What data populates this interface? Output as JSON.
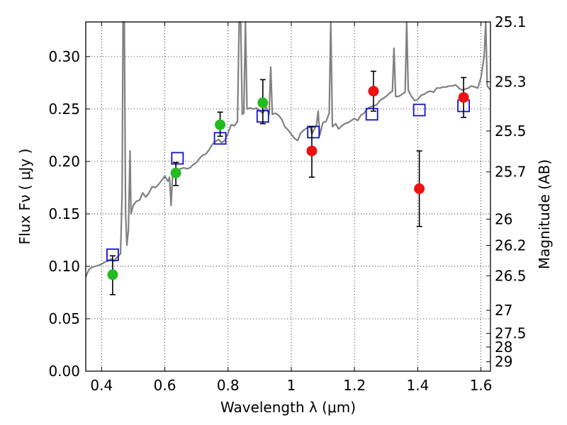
{
  "chart_data": {
    "type": "scatter",
    "xlabel": "Wavelength  λ (μm)",
    "ylabel": "Flux  Fν  ( μJy )",
    "ylabel_right": "Magnitude (AB)",
    "xlim": [
      0.35,
      1.63
    ],
    "ylim": [
      0.0,
      0.333
    ],
    "grid": true,
    "x_ticks": [
      0.4,
      0.6,
      0.8,
      1.0,
      1.2,
      1.4,
      1.6
    ],
    "x_tick_labels": [
      "0.4",
      "0.6",
      "0.8",
      "1",
      "1.2",
      "1.4",
      "1.6"
    ],
    "y_ticks": [
      0.0,
      0.05,
      0.1,
      0.15,
      0.2,
      0.25,
      0.3
    ],
    "y_tick_labels": [
      "0.00",
      "0.05",
      "0.10",
      "0.15",
      "0.20",
      "0.25",
      "0.30"
    ],
    "right_ticks": [
      {
        "label": "25.1",
        "flux": 0.333
      },
      {
        "label": "25.3",
        "flux": 0.276
      },
      {
        "label": "25.5",
        "flux": 0.229
      },
      {
        "label": "25.7",
        "flux": 0.19
      },
      {
        "label": "26",
        "flux": 0.145
      },
      {
        "label": "26.2",
        "flux": 0.12
      },
      {
        "label": "26.5",
        "flux": 0.091
      },
      {
        "label": "27",
        "flux": 0.058
      },
      {
        "label": "27.5",
        "flux": 0.036
      },
      {
        "label": "28",
        "flux": 0.023
      },
      {
        "label": "29",
        "flux": 0.009
      }
    ],
    "colors": {
      "green": "#22bb22",
      "red": "#ee1111",
      "blue": "#1111cc",
      "spectrum": "#808080",
      "errorbar": "#000000"
    },
    "series": [
      {
        "marker": "circle",
        "color": "#22bb22",
        "points": [
          {
            "x": 0.435,
            "y": 0.092,
            "yerr_low": 0.019,
            "yerr_high": 0.018
          },
          {
            "x": 0.635,
            "y": 0.189,
            "yerr_low": 0.012,
            "yerr_high": 0.01
          },
          {
            "x": 0.775,
            "y": 0.235,
            "yerr_low": 0.011,
            "yerr_high": 0.012
          },
          {
            "x": 0.91,
            "y": 0.256,
            "yerr_low": 0.02,
            "yerr_high": 0.022
          }
        ]
      },
      {
        "marker": "circle",
        "color": "#ee1111",
        "points": [
          {
            "x": 1.065,
            "y": 0.21,
            "yerr_low": 0.025,
            "yerr_high": 0.023
          },
          {
            "x": 1.26,
            "y": 0.267,
            "yerr_low": 0.019,
            "yerr_high": 0.019
          },
          {
            "x": 1.405,
            "y": 0.174,
            "yerr_low": 0.036,
            "yerr_high": 0.036
          },
          {
            "x": 1.545,
            "y": 0.261,
            "yerr_low": 0.019,
            "yerr_high": 0.019
          }
        ]
      },
      {
        "marker": "open-square",
        "color": "#1111cc",
        "points": [
          {
            "x": 0.435,
            "y": 0.111
          },
          {
            "x": 0.64,
            "y": 0.203
          },
          {
            "x": 0.775,
            "y": 0.222
          },
          {
            "x": 0.91,
            "y": 0.243
          },
          {
            "x": 1.07,
            "y": 0.228
          },
          {
            "x": 1.255,
            "y": 0.245
          },
          {
            "x": 1.405,
            "y": 0.249
          },
          {
            "x": 1.545,
            "y": 0.253
          }
        ]
      },
      {
        "type": "line",
        "color": "#808080",
        "points": [
          [
            0.35,
            0.09
          ],
          [
            0.36,
            0.097
          ],
          [
            0.37,
            0.099
          ],
          [
            0.38,
            0.1
          ],
          [
            0.39,
            0.101
          ],
          [
            0.4,
            0.102
          ],
          [
            0.41,
            0.104
          ],
          [
            0.42,
            0.105
          ],
          [
            0.43,
            0.107
          ],
          [
            0.44,
            0.105
          ],
          [
            0.45,
            0.109
          ],
          [
            0.46,
            0.112
          ],
          [
            0.465,
            0.17
          ],
          [
            0.468,
            0.333
          ],
          [
            0.472,
            0.333
          ],
          [
            0.476,
            0.15
          ],
          [
            0.48,
            0.12
          ],
          [
            0.485,
            0.135
          ],
          [
            0.49,
            0.21
          ],
          [
            0.493,
            0.15
          ],
          [
            0.5,
            0.158
          ],
          [
            0.51,
            0.162
          ],
          [
            0.52,
            0.163
          ],
          [
            0.53,
            0.17
          ],
          [
            0.54,
            0.166
          ],
          [
            0.55,
            0.17
          ],
          [
            0.56,
            0.176
          ],
          [
            0.57,
            0.175
          ],
          [
            0.58,
            0.178
          ],
          [
            0.59,
            0.182
          ],
          [
            0.6,
            0.186
          ],
          [
            0.61,
            0.181
          ],
          [
            0.615,
            0.185
          ],
          [
            0.62,
            0.158
          ],
          [
            0.625,
            0.19
          ],
          [
            0.64,
            0.192
          ],
          [
            0.65,
            0.193
          ],
          [
            0.66,
            0.194
          ],
          [
            0.67,
            0.193
          ],
          [
            0.68,
            0.194
          ],
          [
            0.69,
            0.197
          ],
          [
            0.7,
            0.199
          ],
          [
            0.71,
            0.203
          ],
          [
            0.72,
            0.206
          ],
          [
            0.73,
            0.207
          ],
          [
            0.74,
            0.211
          ],
          [
            0.75,
            0.216
          ],
          [
            0.76,
            0.219
          ],
          [
            0.77,
            0.221
          ],
          [
            0.78,
            0.218
          ],
          [
            0.79,
            0.22
          ],
          [
            0.8,
            0.227
          ],
          [
            0.81,
            0.235
          ],
          [
            0.82,
            0.234
          ],
          [
            0.83,
            0.238
          ],
          [
            0.835,
            0.333
          ],
          [
            0.84,
            0.333
          ],
          [
            0.845,
            0.245
          ],
          [
            0.85,
            0.246
          ],
          [
            0.855,
            0.333
          ],
          [
            0.86,
            0.25
          ],
          [
            0.87,
            0.251
          ],
          [
            0.88,
            0.25
          ],
          [
            0.89,
            0.251
          ],
          [
            0.9,
            0.248
          ],
          [
            0.91,
            0.246
          ],
          [
            0.92,
            0.252
          ],
          [
            0.93,
            0.245
          ],
          [
            0.935,
            0.29
          ],
          [
            0.94,
            0.245
          ],
          [
            0.95,
            0.246
          ],
          [
            0.96,
            0.244
          ],
          [
            0.97,
            0.24
          ],
          [
            0.98,
            0.233
          ],
          [
            0.99,
            0.23
          ],
          [
            1.0,
            0.226
          ],
          [
            1.01,
            0.222
          ],
          [
            1.02,
            0.22
          ],
          [
            1.03,
            0.227
          ],
          [
            1.04,
            0.23
          ],
          [
            1.05,
            0.232
          ],
          [
            1.06,
            0.233
          ],
          [
            1.065,
            0.226
          ],
          [
            1.08,
            0.235
          ],
          [
            1.085,
            0.248
          ],
          [
            1.09,
            0.225
          ],
          [
            1.1,
            0.237
          ],
          [
            1.11,
            0.238
          ],
          [
            1.12,
            0.246
          ],
          [
            1.125,
            0.333
          ],
          [
            1.13,
            0.233
          ],
          [
            1.14,
            0.236
          ],
          [
            1.15,
            0.231
          ],
          [
            1.16,
            0.234
          ],
          [
            1.17,
            0.236
          ],
          [
            1.18,
            0.237
          ],
          [
            1.19,
            0.239
          ],
          [
            1.2,
            0.241
          ],
          [
            1.21,
            0.239
          ],
          [
            1.22,
            0.244
          ],
          [
            1.23,
            0.246
          ],
          [
            1.24,
            0.25
          ],
          [
            1.25,
            0.252
          ],
          [
            1.26,
            0.253
          ],
          [
            1.27,
            0.254
          ],
          [
            1.28,
            0.258
          ],
          [
            1.29,
            0.26
          ],
          [
            1.3,
            0.262
          ],
          [
            1.31,
            0.265
          ],
          [
            1.32,
            0.267
          ],
          [
            1.325,
            0.308
          ],
          [
            1.33,
            0.262
          ],
          [
            1.34,
            0.262
          ],
          [
            1.35,
            0.264
          ],
          [
            1.36,
            0.266
          ],
          [
            1.365,
            0.333
          ],
          [
            1.37,
            0.268
          ],
          [
            1.38,
            0.262
          ],
          [
            1.39,
            0.258
          ],
          [
            1.4,
            0.259
          ],
          [
            1.41,
            0.263
          ],
          [
            1.42,
            0.264
          ],
          [
            1.43,
            0.266
          ],
          [
            1.44,
            0.267
          ],
          [
            1.45,
            0.266
          ],
          [
            1.46,
            0.27
          ],
          [
            1.47,
            0.27
          ],
          [
            1.48,
            0.271
          ],
          [
            1.49,
            0.271
          ],
          [
            1.5,
            0.272
          ],
          [
            1.51,
            0.272
          ],
          [
            1.52,
            0.273
          ],
          [
            1.53,
            0.27
          ],
          [
            1.54,
            0.268
          ],
          [
            1.55,
            0.269
          ],
          [
            1.56,
            0.27
          ],
          [
            1.57,
            0.272
          ],
          [
            1.58,
            0.271
          ],
          [
            1.59,
            0.27
          ],
          [
            1.6,
            0.28
          ],
          [
            1.61,
            0.3
          ],
          [
            1.615,
            0.333
          ],
          [
            1.62,
            0.272
          ],
          [
            1.63,
            0.268
          ]
        ]
      }
    ]
  }
}
